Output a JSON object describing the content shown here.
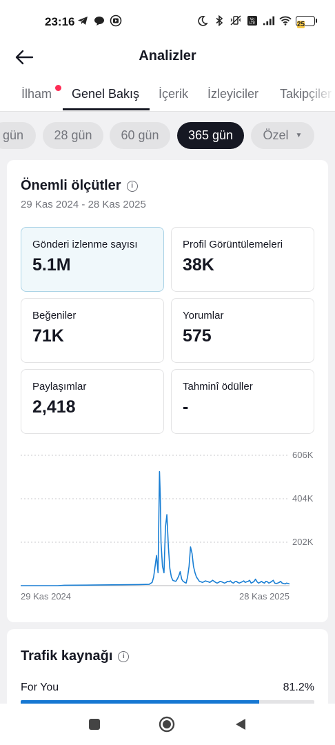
{
  "status_bar": {
    "time": "23:16",
    "battery_level": "25",
    "left_icons": [
      "telegram-icon",
      "chat-bubble-icon",
      "media-icon"
    ],
    "right_icons": [
      "moon-icon",
      "bluetooth-icon",
      "mute-vibrate-icon",
      "volte-icon",
      "signal-icon",
      "wifi-icon",
      "battery-icon"
    ]
  },
  "header": {
    "title": "Analizler"
  },
  "tabs": [
    {
      "label": "İlham"
    },
    {
      "label": "Genel Bakış"
    },
    {
      "label": "İçerik"
    },
    {
      "label": "İzleyiciler"
    },
    {
      "label": "Takipçiler"
    }
  ],
  "active_tab": "Genel Bakış",
  "date_chips": [
    {
      "label": "gün"
    },
    {
      "label": "28 gün"
    },
    {
      "label": "60 gün"
    },
    {
      "label": "365 gün"
    },
    {
      "label": "Özel"
    }
  ],
  "selected_chip": "365 gün",
  "key_metrics": {
    "title": "Önemli ölçütler",
    "date_range": "29 Kas 2024 - 28 Kas 2025",
    "items": [
      {
        "label": "Gönderi izlenme sayısı",
        "value": "5.1M"
      },
      {
        "label": "Profil Görüntülemeleri",
        "value": "38K"
      },
      {
        "label": "Beğeniler",
        "value": "71K"
      },
      {
        "label": "Yorumlar",
        "value": "575"
      },
      {
        "label": "Paylaşımlar",
        "value": "2,418"
      },
      {
        "label": "Tahminî ödüller",
        "value": "-"
      }
    ]
  },
  "chart_data": {
    "type": "line",
    "title": "",
    "xlabel": "",
    "ylabel": "",
    "x_tick_labels": [
      "29 Kas 2024",
      "28 Kas 2025"
    ],
    "y_tick_labels": [
      "606K",
      "404K",
      "202K"
    ],
    "y_ticks": [
      606000,
      404000,
      202000
    ],
    "ylim": [
      0,
      606000
    ],
    "grid": true,
    "series_color": "#1a7fd4",
    "series": [
      {
        "x": [
          0,
          50,
          59,
          100,
          160,
          174,
          178,
          180,
          182,
          184,
          186,
          188,
          189,
          190,
          192,
          194,
          196,
          198,
          200,
          202,
          204,
          206,
          208,
          210,
          212,
          214,
          216,
          218,
          219,
          220,
          221,
          222,
          224,
          226,
          228,
          230,
          232,
          234,
          236,
          238,
          240,
          241,
          242,
          244,
          246,
          248,
          250,
          252,
          254,
          256,
          258,
          260,
          262,
          264,
          266,
          268,
          270,
          272,
          274,
          276,
          278,
          280,
          282,
          284,
          286,
          288,
          290,
          292,
          294,
          296,
          298,
          300,
          302,
          304,
          306,
          308,
          310,
          312,
          314,
          316,
          318,
          320,
          322,
          324,
          326,
          328,
          330,
          332,
          334,
          336,
          338,
          340,
          342,
          344,
          346,
          348,
          350,
          352,
          354,
          356,
          358,
          360,
          362,
          364
        ],
        "y": [
          0,
          0,
          2000,
          3000,
          5000,
          6000,
          15000,
          40000,
          90000,
          140000,
          60000,
          530000,
          420000,
          200000,
          90000,
          60000,
          270000,
          330000,
          180000,
          80000,
          40000,
          25000,
          22000,
          20000,
          30000,
          45000,
          65000,
          30000,
          25000,
          20000,
          18000,
          15000,
          12000,
          40000,
          90000,
          180000,
          150000,
          90000,
          60000,
          40000,
          30000,
          25000,
          20000,
          18000,
          15000,
          18000,
          22000,
          20000,
          18000,
          15000,
          20000,
          25000,
          20000,
          15000,
          12000,
          15000,
          20000,
          18000,
          15000,
          12000,
          15000,
          20000,
          18000,
          22000,
          15000,
          12000,
          18000,
          20000,
          15000,
          12000,
          15000,
          18000,
          22000,
          15000,
          18000,
          20000,
          25000,
          12000,
          15000,
          20000,
          30000,
          18000,
          12000,
          15000,
          20000,
          15000,
          12000,
          20000,
          18000,
          12000,
          15000,
          20000,
          25000,
          12000,
          10000,
          12000,
          15000,
          20000,
          12000,
          10000,
          8000,
          12000,
          10000,
          8000
        ]
      }
    ]
  },
  "traffic": {
    "title": "Trafik kaynağı",
    "rows": [
      {
        "label": "For You",
        "value": "81.2%",
        "fraction": 0.812
      }
    ]
  },
  "nav_bar": {
    "buttons": [
      "recent-apps-icon",
      "home-icon",
      "back-nav-icon"
    ]
  }
}
